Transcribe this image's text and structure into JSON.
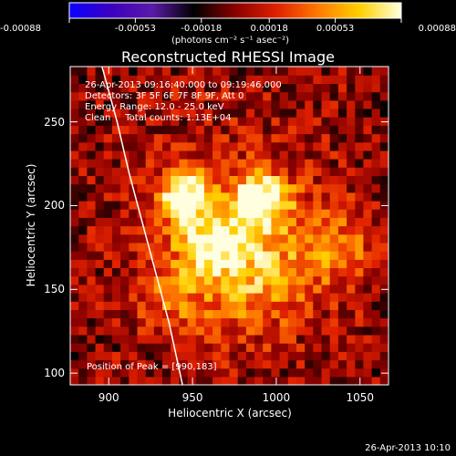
{
  "colorbar": {
    "tick_labels": [
      "-0.00088",
      "-0.00053",
      "-0.00018",
      "0.00018",
      "0.00053",
      "0.00088"
    ],
    "tick_values": [
      -0.00088,
      -0.00053,
      -0.00018,
      0.00018,
      0.00053,
      0.00088
    ],
    "range": [
      -0.00088,
      0.00088
    ],
    "units_label": "(photons cm⁻² s⁻¹ asec⁻²)",
    "colors": [
      "#0a00ff",
      "#3b00c0",
      "#5a1aa8",
      "#000000",
      "#8a0000",
      "#e02000",
      "#ff7a00",
      "#ffd000",
      "#ffffe0"
    ]
  },
  "chart_data": {
    "type": "heatmap",
    "title": "Reconstructed RHESSI Image",
    "xlabel": "Heliocentric X (arcsec)",
    "ylabel": "Heliocentric Y (arcsec)",
    "xlim": [
      877,
      1067
    ],
    "ylim": [
      93,
      283
    ],
    "x_ticks": [
      900,
      950,
      1000,
      1050
    ],
    "y_ticks": [
      100,
      150,
      200,
      250
    ],
    "x_tick_labels": [
      "900",
      "950",
      "1000",
      "1050"
    ],
    "y_tick_labels": [
      "100",
      "150",
      "200",
      "250"
    ],
    "sources": [
      {
        "x": 945,
        "y": 207,
        "peak": 0.00088,
        "sigma": 10
      },
      {
        "x": 990,
        "y": 203,
        "peak": 0.00088,
        "sigma": 12
      },
      {
        "x": 960,
        "y": 180,
        "peak": 0.0006,
        "sigma": 14
      },
      {
        "x": 985,
        "y": 160,
        "peak": 0.00045,
        "sigma": 22
      },
      {
        "x": 935,
        "y": 145,
        "peak": 0.0003,
        "sigma": 15
      },
      {
        "x": 1035,
        "y": 175,
        "peak": 0.00035,
        "sigma": 18
      }
    ],
    "annotations": [
      "26-Apr-2013 09:16:40.000 to 09:19:46.000",
      "Detectors: 3F 5F 6F 7F 8F 9F, Att 0",
      "Energy Range: 12.0 - 25.0 keV",
      "Clean     Total counts: 1.13E+04"
    ],
    "peak_label": "Position of Peak = [990,183]",
    "peak_position": [
      990,
      183
    ],
    "limb_color": "#ffffff"
  },
  "footer": {
    "timestamp": "26-Apr-2013 10:10"
  }
}
